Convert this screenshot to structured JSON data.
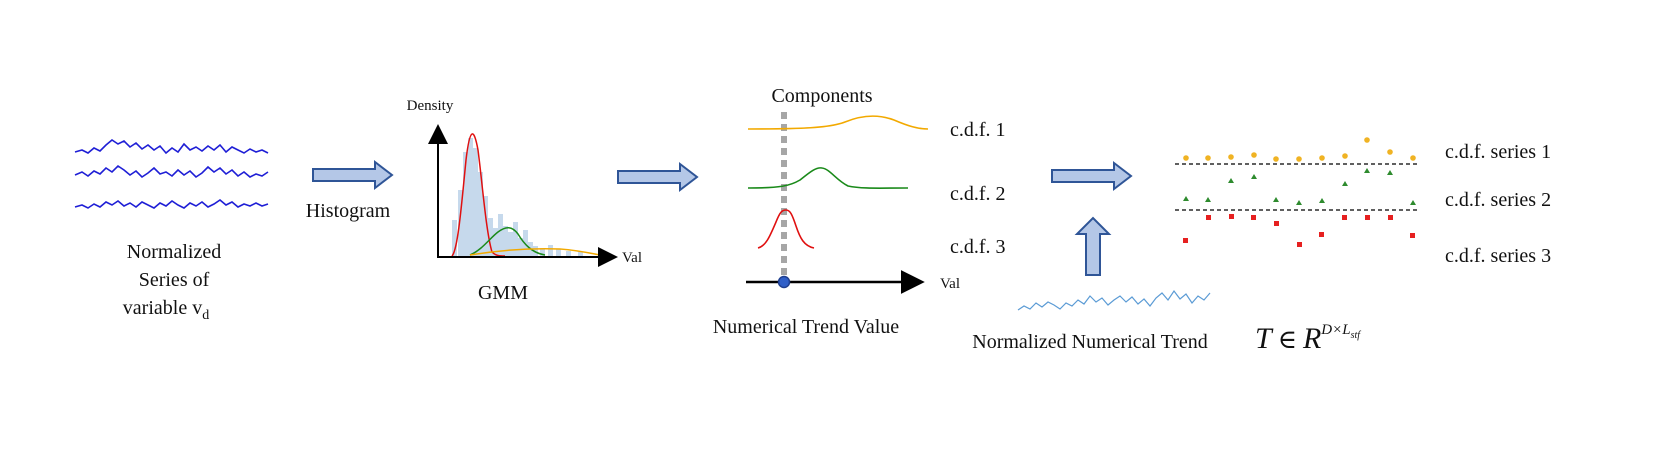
{
  "series_block": {
    "label_line1": "Normalized",
    "label_line2": "Series of",
    "label_line3": "variable v",
    "label_subscript": "d"
  },
  "arrow1_label": "Histogram",
  "gmm_block": {
    "y_axis_label": "Density",
    "x_axis_label": "Val",
    "caption": "GMM"
  },
  "components_block": {
    "title": "Components",
    "cdf_labels": [
      "c.d.f. 1",
      "c.d.f. 2",
      "c.d.f. 3"
    ],
    "x_axis_label": "Val",
    "caption": "Numerical Trend Value"
  },
  "trend_block": {
    "caption": "Normalized Numerical Trend",
    "math_T": "T",
    "math_in": "∈",
    "math_R": "R",
    "math_exp": "D×L",
    "math_exp_sub": "stf"
  },
  "cdf_series_labels": [
    "c.d.f. series 1",
    "c.d.f. series 2",
    "c.d.f. series 3"
  ],
  "colors": {
    "series_blue": "#1f1fd6",
    "arrow_fill": "#b4c7e7",
    "arrow_stroke": "#2f5597",
    "orange": "#f2a900",
    "green": "#1a8a1a",
    "red": "#e01010",
    "histogram": "#c6d9ec",
    "dots_orange": "#f0b323",
    "dots_green": "#2e8b2e",
    "dots_red": "#e62020",
    "trend_line": "#5b9bd5"
  }
}
